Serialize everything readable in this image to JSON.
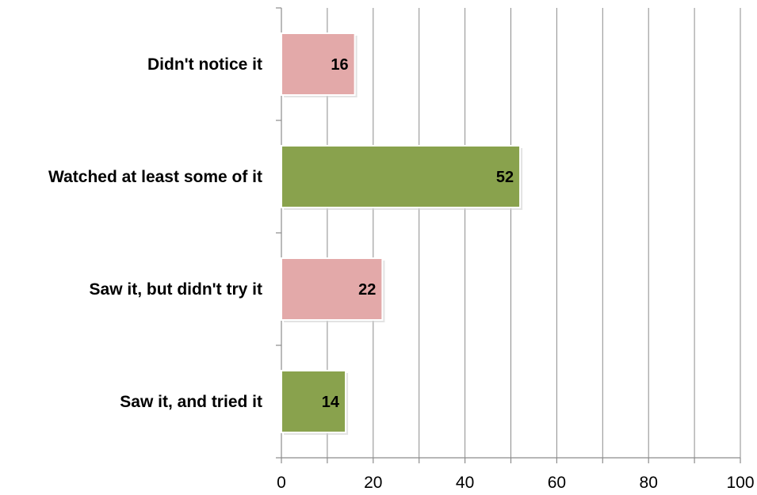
{
  "chart_data": {
    "type": "bar",
    "orientation": "horizontal",
    "title": "",
    "xlabel": "",
    "ylabel": "",
    "categories": [
      "Didn't notice it",
      "Watched at least some of it",
      "Saw it, but didn't try it",
      "Saw it, and tried it"
    ],
    "values": [
      16,
      52,
      22,
      14
    ],
    "data_labels": [
      "16",
      "52",
      "22",
      "14"
    ],
    "xlim": [
      0,
      100
    ],
    "x_ticks": [
      0,
      20,
      40,
      60,
      80,
      100
    ],
    "x_tick_labels": [
      "0",
      "20",
      "40",
      "60",
      "80",
      "100"
    ],
    "minor_gridlines_every": 10,
    "grid": true,
    "legend": "none",
    "bar_colors": [
      "#e3a9a9",
      "#89a24d",
      "#e3a9a9",
      "#89a24d"
    ]
  }
}
